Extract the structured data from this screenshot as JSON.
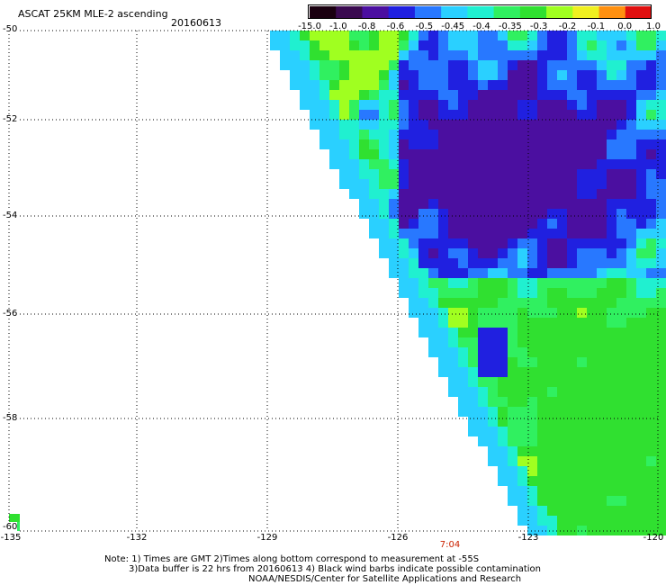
{
  "header": {
    "title": "ASCAT 25KM MLE-2 ascending",
    "date": "20160613"
  },
  "colorbar": {
    "labels": [
      "-15.0",
      "-1.0",
      "-0.8",
      "-0.6",
      "-0.5",
      "-0.45",
      "-0.4",
      "-0.35",
      "-0.3",
      "-0.2",
      "-0.1",
      "0.0",
      "1.0"
    ],
    "colors": [
      "#1a0010",
      "#3a0a50",
      "#4b0fa0",
      "#2020e0",
      "#2878ff",
      "#2ad0ff",
      "#20f0d0",
      "#30f060",
      "#30e030",
      "#a0ff20",
      "#f0f020",
      "#ff9010",
      "#e01010"
    ]
  },
  "map": {
    "lat_labels": [
      "-50",
      "-52",
      "-54",
      "-56",
      "-58",
      "-60"
    ],
    "lon_labels": [
      "-135",
      "-132",
      "-129",
      "-126",
      "-123",
      "-120"
    ],
    "time_label": "7:04"
  },
  "notes": [
    "Note: 1) Times are GMT 2)Times along bottom correspond to measurement at -55S",
    "3)Data buffer is 22 hrs from 20160613 4) Black wind barbs indicate possible contamination",
    "NOAA/NESDIS/Center for Satellite Applications and Research"
  ]
}
